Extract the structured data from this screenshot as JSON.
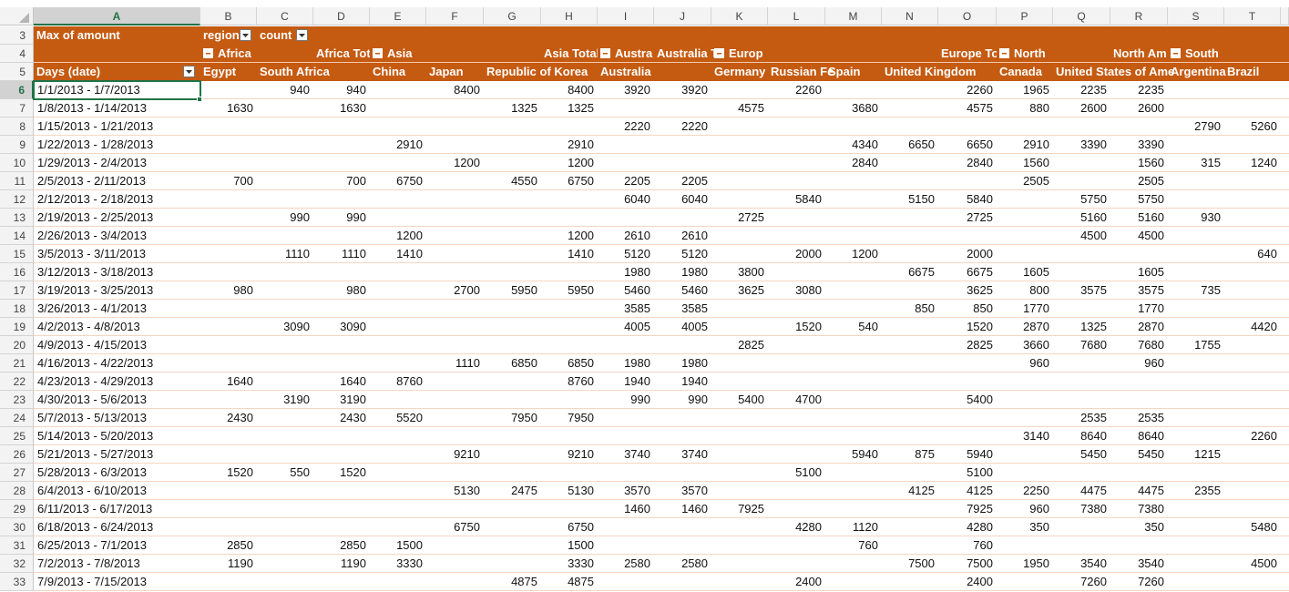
{
  "column_letters": [
    "A",
    "B",
    "C",
    "D",
    "E",
    "F",
    "G",
    "H",
    "I",
    "J",
    "K",
    "L",
    "M",
    "N",
    "O",
    "P",
    "Q",
    "R",
    "S",
    "T"
  ],
  "header_rows": [
    {
      "row_number": 3,
      "cells": [
        "Max of amount",
        "region",
        "count",
        null,
        null,
        null,
        null,
        null,
        null,
        null,
        null,
        null,
        null,
        null,
        null,
        null,
        null,
        null,
        null,
        null
      ]
    },
    {
      "row_number": 4,
      "cells": [
        null,
        "Africa",
        null,
        "Africa Tot",
        "Asia",
        null,
        null,
        "Asia Total",
        "Austra",
        "Australia T",
        "Europ",
        null,
        null,
        null,
        "Europe To",
        "North",
        null,
        "North Am",
        "South",
        null
      ]
    },
    {
      "row_number": 5,
      "cells": [
        "Days (date)",
        "Egypt",
        "South Africa",
        null,
        "China",
        "Japan",
        "Republic of Korea",
        null,
        "Australia",
        null,
        "Germany",
        "Russian Fe",
        "Spain",
        "United Kingdom",
        null,
        "Canada",
        "United States of Ame",
        null,
        "Argentina",
        "Brazil"
      ]
    }
  ],
  "rows": [
    {
      "row_number": 6,
      "cells": [
        "1/1/2013 - 1/7/2013",
        null,
        940,
        940,
        null,
        8400,
        null,
        8400,
        3920,
        3920,
        null,
        2260,
        null,
        null,
        2260,
        1965,
        2235,
        2235,
        null,
        null
      ]
    },
    {
      "row_number": 7,
      "cells": [
        "1/8/2013 - 1/14/2013",
        1630,
        null,
        1630,
        null,
        null,
        1325,
        1325,
        null,
        null,
        4575,
        null,
        3680,
        null,
        4575,
        880,
        2600,
        2600,
        null,
        null
      ]
    },
    {
      "row_number": 8,
      "cells": [
        "1/15/2013 - 1/21/2013",
        null,
        null,
        null,
        null,
        null,
        null,
        null,
        2220,
        2220,
        null,
        null,
        null,
        null,
        null,
        null,
        null,
        null,
        2790,
        5260
      ]
    },
    {
      "row_number": 9,
      "cells": [
        "1/22/2013 - 1/28/2013",
        null,
        null,
        null,
        2910,
        null,
        null,
        2910,
        null,
        null,
        null,
        null,
        4340,
        6650,
        6650,
        2910,
        3390,
        3390,
        null,
        null
      ]
    },
    {
      "row_number": 10,
      "cells": [
        "1/29/2013 - 2/4/2013",
        null,
        null,
        null,
        null,
        1200,
        null,
        1200,
        null,
        null,
        null,
        null,
        2840,
        null,
        2840,
        1560,
        null,
        1560,
        315,
        1240
      ]
    },
    {
      "row_number": 11,
      "cells": [
        "2/5/2013 - 2/11/2013",
        700,
        null,
        700,
        6750,
        null,
        4550,
        6750,
        2205,
        2205,
        null,
        null,
        null,
        null,
        null,
        2505,
        null,
        2505,
        null,
        null
      ]
    },
    {
      "row_number": 12,
      "cells": [
        "2/12/2013 - 2/18/2013",
        null,
        null,
        null,
        null,
        null,
        null,
        null,
        6040,
        6040,
        null,
        5840,
        null,
        5150,
        5840,
        null,
        5750,
        5750,
        null,
        null
      ]
    },
    {
      "row_number": 13,
      "cells": [
        "2/19/2013 - 2/25/2013",
        null,
        990,
        990,
        null,
        null,
        null,
        null,
        null,
        null,
        2725,
        null,
        null,
        null,
        2725,
        null,
        5160,
        5160,
        930,
        null
      ]
    },
    {
      "row_number": 14,
      "cells": [
        "2/26/2013 - 3/4/2013",
        null,
        null,
        null,
        1200,
        null,
        null,
        1200,
        2610,
        2610,
        null,
        null,
        null,
        null,
        null,
        null,
        4500,
        4500,
        null,
        null
      ]
    },
    {
      "row_number": 15,
      "cells": [
        "3/5/2013 - 3/11/2013",
        null,
        1110,
        1110,
        1410,
        null,
        null,
        1410,
        5120,
        5120,
        null,
        2000,
        1200,
        null,
        2000,
        null,
        null,
        null,
        null,
        640
      ]
    },
    {
      "row_number": 16,
      "cells": [
        "3/12/2013 - 3/18/2013",
        null,
        null,
        null,
        null,
        null,
        null,
        null,
        1980,
        1980,
        3800,
        null,
        null,
        6675,
        6675,
        1605,
        null,
        1605,
        null,
        null
      ]
    },
    {
      "row_number": 17,
      "cells": [
        "3/19/2013 - 3/25/2013",
        980,
        null,
        980,
        null,
        2700,
        5950,
        5950,
        5460,
        5460,
        3625,
        3080,
        null,
        null,
        3625,
        800,
        3575,
        3575,
        735,
        null
      ]
    },
    {
      "row_number": 18,
      "cells": [
        "3/26/2013 - 4/1/2013",
        null,
        null,
        null,
        null,
        null,
        null,
        null,
        3585,
        3585,
        null,
        null,
        null,
        850,
        850,
        1770,
        null,
        1770,
        null,
        null
      ]
    },
    {
      "row_number": 19,
      "cells": [
        "4/2/2013 - 4/8/2013",
        null,
        3090,
        3090,
        null,
        null,
        null,
        null,
        4005,
        4005,
        null,
        1520,
        540,
        null,
        1520,
        2870,
        1325,
        2870,
        null,
        4420
      ]
    },
    {
      "row_number": 20,
      "cells": [
        "4/9/2013 - 4/15/2013",
        null,
        null,
        null,
        null,
        null,
        null,
        null,
        null,
        null,
        2825,
        null,
        null,
        null,
        2825,
        3660,
        7680,
        7680,
        1755,
        null
      ]
    },
    {
      "row_number": 21,
      "cells": [
        "4/16/2013 - 4/22/2013",
        null,
        null,
        null,
        null,
        1110,
        6850,
        6850,
        1980,
        1980,
        null,
        null,
        null,
        null,
        null,
        960,
        null,
        960,
        null,
        null
      ]
    },
    {
      "row_number": 22,
      "cells": [
        "4/23/2013 - 4/29/2013",
        1640,
        null,
        1640,
        8760,
        null,
        null,
        8760,
        1940,
        1940,
        null,
        null,
        null,
        null,
        null,
        null,
        null,
        null,
        null,
        null
      ]
    },
    {
      "row_number": 23,
      "cells": [
        "4/30/2013 - 5/6/2013",
        null,
        3190,
        3190,
        null,
        null,
        null,
        null,
        990,
        990,
        5400,
        4700,
        null,
        null,
        5400,
        null,
        null,
        null,
        null,
        null
      ]
    },
    {
      "row_number": 24,
      "cells": [
        "5/7/2013 - 5/13/2013",
        2430,
        null,
        2430,
        5520,
        null,
        7950,
        7950,
        null,
        null,
        null,
        null,
        null,
        null,
        null,
        null,
        2535,
        2535,
        null,
        null
      ]
    },
    {
      "row_number": 25,
      "cells": [
        "5/14/2013 - 5/20/2013",
        null,
        null,
        null,
        null,
        null,
        null,
        null,
        null,
        null,
        null,
        null,
        null,
        null,
        null,
        3140,
        8640,
        8640,
        null,
        2260
      ]
    },
    {
      "row_number": 26,
      "cells": [
        "5/21/2013 - 5/27/2013",
        null,
        null,
        null,
        null,
        9210,
        null,
        9210,
        3740,
        3740,
        null,
        null,
        5940,
        875,
        5940,
        null,
        5450,
        5450,
        1215,
        null
      ]
    },
    {
      "row_number": 27,
      "cells": [
        "5/28/2013 - 6/3/2013",
        1520,
        550,
        1520,
        null,
        null,
        null,
        null,
        null,
        null,
        null,
        5100,
        null,
        null,
        5100,
        null,
        null,
        null,
        null,
        null
      ]
    },
    {
      "row_number": 28,
      "cells": [
        "6/4/2013 - 6/10/2013",
        null,
        null,
        null,
        null,
        5130,
        2475,
        5130,
        3570,
        3570,
        null,
        null,
        null,
        4125,
        4125,
        2250,
        4475,
        4475,
        2355,
        null
      ]
    },
    {
      "row_number": 29,
      "cells": [
        "6/11/2013 - 6/17/2013",
        null,
        null,
        null,
        null,
        null,
        null,
        null,
        1460,
        1460,
        7925,
        null,
        null,
        null,
        7925,
        960,
        7380,
        7380,
        null,
        null
      ]
    },
    {
      "row_number": 30,
      "cells": [
        "6/18/2013 - 6/24/2013",
        null,
        null,
        null,
        null,
        6750,
        null,
        6750,
        null,
        null,
        null,
        4280,
        1120,
        null,
        4280,
        350,
        null,
        350,
        null,
        5480
      ]
    },
    {
      "row_number": 31,
      "cells": [
        "6/25/2013 - 7/1/2013",
        2850,
        null,
        2850,
        1500,
        null,
        null,
        1500,
        null,
        null,
        null,
        null,
        760,
        null,
        760,
        null,
        null,
        null,
        null,
        null
      ]
    },
    {
      "row_number": 32,
      "cells": [
        "7/2/2013 - 7/8/2013",
        1190,
        null,
        1190,
        3330,
        null,
        null,
        3330,
        2580,
        2580,
        null,
        null,
        null,
        7500,
        7500,
        1950,
        3540,
        3540,
        null,
        4500
      ]
    },
    {
      "row_number": 33,
      "cells": [
        "7/9/2013 - 7/15/2013",
        null,
        null,
        null,
        null,
        null,
        4875,
        4875,
        null,
        null,
        null,
        2400,
        null,
        null,
        2400,
        null,
        7260,
        7260,
        null,
        null
      ]
    }
  ]
}
